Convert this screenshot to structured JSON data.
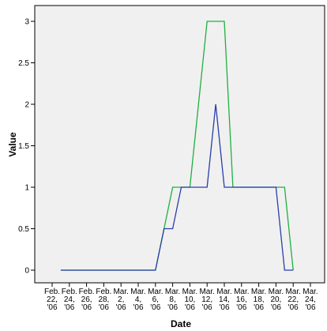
{
  "chart_data": {
    "type": "line",
    "title": "",
    "xlabel": "Date",
    "ylabel": "Value",
    "ylim": [
      0,
      3
    ],
    "yticks": [
      "0",
      "0.5",
      "1",
      "1.5",
      "2",
      "2.5",
      "3"
    ],
    "grid": false,
    "legend": "none",
    "x": [
      "Feb. 22, '06",
      "Feb. 23, '06",
      "Feb. 24, '06",
      "Feb. 25, '06",
      "Feb. 26, '06",
      "Feb. 27, '06",
      "Feb. 28, '06",
      "Mar. 1, '06",
      "Mar. 2, '06",
      "Mar. 3, '06",
      "Mar. 4, '06",
      "Mar. 5, '06",
      "Mar. 6, '06",
      "Mar. 7, '06",
      "Mar. 8, '06",
      "Mar. 9, '06",
      "Mar. 10, '06",
      "Mar. 11, '06",
      "Mar. 12, '06",
      "Mar. 13, '06",
      "Mar. 14, '06",
      "Mar. 15, '06",
      "Mar. 16, '06",
      "Mar. 17, '06",
      "Mar. 18, '06",
      "Mar. 19, '06",
      "Mar. 20, '06",
      "Mar. 21, '06",
      "Mar. 22, '06",
      "Mar. 23, '06",
      "Mar. 24, '06"
    ],
    "xtick_labels": [
      [
        "Feb.",
        "22,",
        "'06"
      ],
      [
        "Feb.",
        "24,",
        "'06"
      ],
      [
        "Feb.",
        "26,",
        "'06"
      ],
      [
        "Feb.",
        "28,",
        "'06"
      ],
      [
        "Mar.",
        "2,",
        "'06"
      ],
      [
        "Mar.",
        "4,",
        "'06"
      ],
      [
        "Mar.",
        "6,",
        "'06"
      ],
      [
        "Mar.",
        "8,",
        "'06"
      ],
      [
        "Mar.",
        "10,",
        "'06"
      ],
      [
        "Mar.",
        "12,",
        "'06"
      ],
      [
        "Mar.",
        "14,",
        "'06"
      ],
      [
        "Mar.",
        "16,",
        "'06"
      ],
      [
        "Mar.",
        "18,",
        "'06"
      ],
      [
        "Mar.",
        "20,",
        "'06"
      ],
      [
        "Mar.",
        "22,",
        "'06"
      ],
      [
        "Mar.",
        "24,",
        "'06"
      ]
    ],
    "series": [
      {
        "color": "#1fb040",
        "values": [
          null,
          0,
          0,
          0,
          0,
          0,
          0,
          0,
          0,
          0,
          0,
          0,
          0,
          0.5,
          1,
          1,
          1,
          2,
          3,
          3,
          3,
          1,
          1,
          1,
          1,
          1,
          1,
          1,
          0,
          null,
          null
        ]
      },
      {
        "color": "#2a3ea8",
        "values": [
          null,
          0,
          0,
          0,
          0,
          0,
          0,
          0,
          0,
          0,
          0,
          0,
          0,
          0.5,
          0.5,
          1,
          1,
          1,
          1,
          2,
          1,
          1,
          1,
          1,
          1,
          1,
          1,
          0,
          0,
          null,
          null
        ]
      }
    ]
  },
  "colors": {
    "plot_background": "#f0f0f0",
    "axis": "#000000"
  }
}
